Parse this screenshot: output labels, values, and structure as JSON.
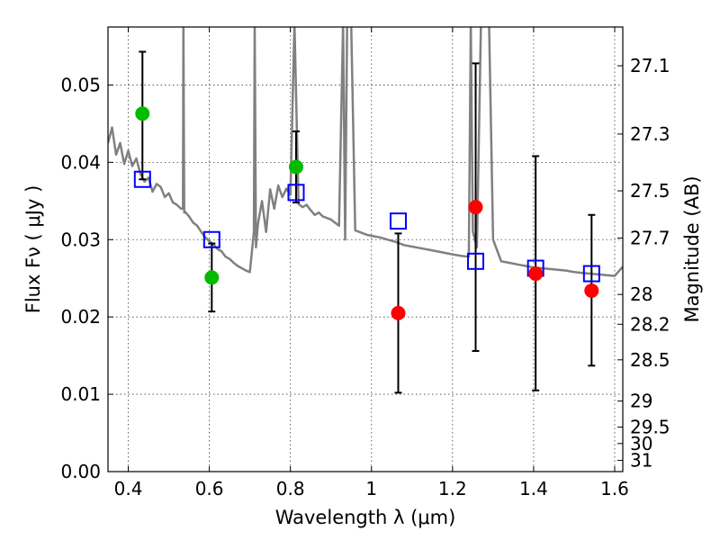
{
  "chart_data": {
    "type": "scatter",
    "xlabel": "Wavelength  λ (μm)",
    "ylabel": "Flux  Fν  ( μJy )",
    "y2label": "Magnitude (AB)",
    "xlim": [
      0.35,
      1.62
    ],
    "ylim": [
      0.0,
      0.0575
    ],
    "grid": true,
    "x_ticks": [
      0.4,
      0.6,
      0.8,
      1.0,
      1.2,
      1.4,
      1.6
    ],
    "x_tick_labels": [
      "0.4",
      "0.6",
      "0.8",
      "1",
      "1.2",
      "1.4",
      "1.6"
    ],
    "y_ticks": [
      0.0,
      0.01,
      0.02,
      0.03,
      0.04,
      0.05
    ],
    "y_tick_labels": [
      "0.00",
      "0.01",
      "0.02",
      "0.03",
      "0.04",
      "0.05"
    ],
    "y2_ticks": [
      27.1,
      27.3,
      27.5,
      27.7,
      28,
      28.2,
      28.5,
      29,
      29.5,
      30,
      31
    ],
    "y2_tick_labels": [
      "27.1",
      "27.3",
      "27.5",
      "27.7",
      "28",
      "28.2",
      "28.5",
      "29",
      "29.5",
      "30",
      "31"
    ],
    "colors": {
      "model": "#808080",
      "green": "#00bb00",
      "red": "#ff0000",
      "square": "#0000ff",
      "errorbar": "#000000"
    },
    "series": [
      {
        "marker": "circle",
        "color": "green",
        "points": [
          {
            "x": 0.435,
            "y": 0.0463,
            "yerr_low": 0.0378,
            "yerr_high": 0.0543
          },
          {
            "x": 0.606,
            "y": 0.0251,
            "yerr_low": 0.0207,
            "yerr_high": 0.0295
          },
          {
            "x": 0.814,
            "y": 0.0394,
            "yerr_low": 0.0348,
            "yerr_high": 0.044
          }
        ]
      },
      {
        "marker": "circle",
        "color": "red",
        "points": [
          {
            "x": 1.066,
            "y": 0.0205,
            "yerr_low": 0.0102,
            "yerr_high": 0.0308
          },
          {
            "x": 1.257,
            "y": 0.0342,
            "yerr_low": 0.0156,
            "yerr_high": 0.0528
          },
          {
            "x": 1.405,
            "y": 0.0256,
            "yerr_low": 0.0105,
            "yerr_high": 0.0408
          },
          {
            "x": 1.543,
            "y": 0.0234,
            "yerr_low": 0.0137,
            "yerr_high": 0.0332
          }
        ]
      },
      {
        "marker": "square",
        "color": "square",
        "points": [
          {
            "x": 0.435,
            "y": 0.0378
          },
          {
            "x": 0.606,
            "y": 0.03
          },
          {
            "x": 0.814,
            "y": 0.0361
          },
          {
            "x": 1.066,
            "y": 0.0324
          },
          {
            "x": 1.257,
            "y": 0.0272
          },
          {
            "x": 1.405,
            "y": 0.0263
          },
          {
            "x": 1.543,
            "y": 0.0256
          }
        ]
      },
      {
        "marker": "line",
        "color": "model",
        "x": [
          0.35,
          0.36,
          0.37,
          0.38,
          0.39,
          0.4,
          0.41,
          0.42,
          0.43,
          0.44,
          0.45,
          0.46,
          0.47,
          0.48,
          0.49,
          0.5,
          0.51,
          0.52,
          0.53,
          0.535,
          0.536,
          0.538,
          0.54,
          0.55,
          0.56,
          0.57,
          0.58,
          0.59,
          0.6,
          0.61,
          0.62,
          0.63,
          0.64,
          0.65,
          0.66,
          0.67,
          0.68,
          0.69,
          0.7,
          0.71,
          0.712,
          0.715,
          0.72,
          0.73,
          0.74,
          0.75,
          0.76,
          0.77,
          0.78,
          0.79,
          0.8,
          0.81,
          0.82,
          0.83,
          0.84,
          0.85,
          0.86,
          0.87,
          0.88,
          0.89,
          0.9,
          0.91,
          0.92,
          0.93,
          0.935,
          0.94,
          0.95,
          0.96,
          0.97,
          0.98,
          0.99,
          1.0,
          1.02,
          1.04,
          1.06,
          1.08,
          1.1,
          1.12,
          1.14,
          1.16,
          1.18,
          1.2,
          1.22,
          1.24,
          1.245,
          1.25,
          1.26,
          1.27,
          1.28,
          1.29,
          1.3,
          1.32,
          1.34,
          1.36,
          1.38,
          1.4,
          1.42,
          1.44,
          1.46,
          1.48,
          1.5,
          1.52,
          1.54,
          1.56,
          1.58,
          1.6,
          1.62
        ],
        "y": [
          0.0425,
          0.0445,
          0.041,
          0.0425,
          0.0398,
          0.0415,
          0.0395,
          0.0405,
          0.0385,
          0.0375,
          0.038,
          0.0362,
          0.0372,
          0.0368,
          0.0355,
          0.036,
          0.0348,
          0.0345,
          0.034,
          0.034,
          0.058,
          0.0335,
          0.0336,
          0.033,
          0.0322,
          0.0318,
          0.031,
          0.0303,
          0.0298,
          0.0294,
          0.0288,
          0.0285,
          0.0278,
          0.0275,
          0.027,
          0.0266,
          0.0263,
          0.026,
          0.0258,
          0.031,
          0.058,
          0.029,
          0.032,
          0.035,
          0.031,
          0.0365,
          0.034,
          0.037,
          0.0355,
          0.0366,
          0.0358,
          0.058,
          0.0346,
          0.0342,
          0.0345,
          0.0338,
          0.0332,
          0.0335,
          0.033,
          0.0328,
          0.0326,
          0.0322,
          0.0318,
          0.058,
          0.03,
          0.058,
          0.058,
          0.0312,
          0.031,
          0.0308,
          0.0306,
          0.0305,
          0.0303,
          0.03,
          0.0297,
          0.0293,
          0.0291,
          0.0289,
          0.0287,
          0.0285,
          0.0283,
          0.0281,
          0.0279,
          0.0278,
          0.058,
          0.031,
          0.029,
          0.058,
          0.058,
          0.058,
          0.03,
          0.0272,
          0.027,
          0.0268,
          0.0266,
          0.0264,
          0.0263,
          0.0262,
          0.0261,
          0.026,
          0.0258,
          0.0257,
          0.0256,
          0.0255,
          0.0254,
          0.0253,
          0.0265
        ]
      }
    ]
  }
}
